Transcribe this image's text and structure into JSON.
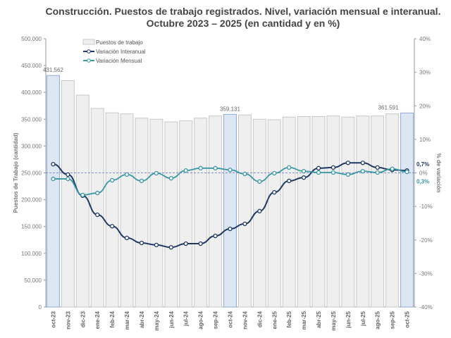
{
  "chart_data": {
    "type": "bar+line",
    "title": "Construcción. Puestos de trabajo registrados. Nivel, variación mensual e interanual.",
    "subtitle": "Octubre 2023 – 2025 (en cantidad y en %)",
    "ylabel": "Puestos de Trabajo (cantidad)",
    "y2label": "% de variación",
    "ylim": [
      0,
      500000
    ],
    "y2lim": [
      -40,
      40
    ],
    "yticks": [
      "0",
      "50.000",
      "100.000",
      "150.000",
      "200.000",
      "250.000",
      "300.000",
      "350.000",
      "400.000",
      "450.000",
      "500.000"
    ],
    "y2ticks": [
      "-40%",
      "-30%",
      "-20%",
      "-10%",
      "0%",
      "10%",
      "20%",
      "30%",
      "40%"
    ],
    "categories": [
      "oct-23",
      "nov-23",
      "dic-23",
      "ene-24",
      "feb-24",
      "mar-24",
      "abr-24",
      "may-24",
      "jun-24",
      "jul-24",
      "ago-24",
      "sep-24",
      "oct-24",
      "nov-24",
      "dic-24",
      "ene-25",
      "feb-25",
      "mar-25",
      "abr-25",
      "may-25",
      "jun-25",
      "jul-25",
      "ago-25",
      "sep-25",
      "oct-25"
    ],
    "highlighted": [
      "oct-23",
      "oct-24",
      "oct-25"
    ],
    "legend_position": "top-left",
    "series": [
      {
        "name": "Puestos de trabajo",
        "type": "bar",
        "axis": "left",
        "color": "#efefef",
        "highlight_color": "#dde7f3",
        "values": [
          431562,
          422000,
          395000,
          370000,
          362000,
          360000,
          352000,
          350000,
          345000,
          347000,
          352000,
          356000,
          359131,
          358000,
          350000,
          349000,
          354000,
          355000,
          355000,
          356000,
          354000,
          356000,
          356000,
          360000,
          361591
        ]
      },
      {
        "name": "Variación Interanual",
        "type": "line",
        "axis": "right",
        "color": "#1f3864",
        "values": [
          2.6,
          -0.5,
          -6.8,
          -12.5,
          -15.9,
          -19.4,
          -20.9,
          -21.5,
          -22.2,
          -21.1,
          -21.1,
          -18.8,
          -16.7,
          -15.2,
          -11.4,
          -5.8,
          -2.4,
          -1.4,
          1.4,
          1.6,
          3.0,
          3.0,
          1.6,
          0.9,
          0.7
        ]
      },
      {
        "name": "Variación Mensual",
        "type": "line",
        "axis": "right",
        "color": "#3a97a6",
        "values": [
          -1.8,
          -1.8,
          -6.6,
          -6.0,
          -2.2,
          -0.5,
          -2.4,
          -0.1,
          -1.6,
          0.7,
          1.4,
          1.4,
          0.9,
          -0.3,
          -2.6,
          -0.1,
          1.6,
          0.5,
          0.1,
          0.1,
          -0.5,
          0.5,
          0.1,
          1.2,
          0.3
        ]
      }
    ],
    "data_labels": {
      "bars": [
        "431.562",
        "359.131",
        "361.591"
      ],
      "interanual_last": "0,7%",
      "mensual_last": "0,3%"
    },
    "reference_line": 0,
    "grid": false
  }
}
